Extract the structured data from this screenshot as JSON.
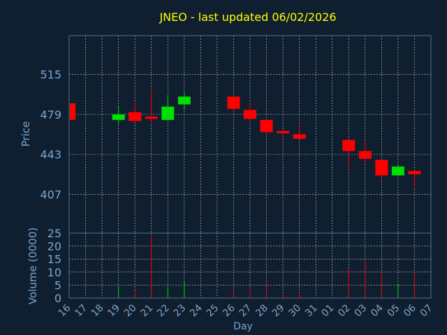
{
  "chart_data": {
    "type": "candlestick",
    "title": "JNEO - last updated 06/02/2026",
    "ylabel": "Price",
    "volume_label": "Volume (0000)",
    "xlabel": "Day",
    "price_ylim": [
      372,
      550
    ],
    "price_ticks": [
      407,
      443,
      479,
      515
    ],
    "volume_ylim": [
      0,
      25
    ],
    "volume_ticks": [
      0,
      5,
      10,
      15,
      20,
      25
    ],
    "x_ticks": [
      "16",
      "17",
      "18",
      "19",
      "20",
      "21",
      "22",
      "23",
      "24",
      "25",
      "26",
      "27",
      "28",
      "29",
      "30",
      "31",
      "01",
      "02",
      "03",
      "04",
      "05",
      "06",
      "07"
    ],
    "grid": true,
    "colors": {
      "background": "#0f1f30",
      "text": "#7ba6cf",
      "title": "#ffff00",
      "axis": "#5a6f86",
      "grid": "#c8d0d8",
      "up": "#00e000",
      "down": "#ff0000"
    },
    "candles": [
      {
        "day": 0,
        "open": 489,
        "high": 489,
        "low": 474,
        "close": 474,
        "volume": 0
      },
      {
        "day": 3,
        "open": 474,
        "high": 486,
        "low": 470,
        "close": 479,
        "volume": 4.5
      },
      {
        "day": 4,
        "open": 481,
        "high": 490,
        "low": 472,
        "close": 473,
        "volume": 3
      },
      {
        "day": 5,
        "open": 477,
        "high": 502,
        "low": 470,
        "close": 475,
        "volume": 24
      },
      {
        "day": 6,
        "open": 474,
        "high": 496,
        "low": 473,
        "close": 486,
        "volume": 4
      },
      {
        "day": 7,
        "open": 488,
        "high": 499,
        "low": 483,
        "close": 495,
        "volume": 6.5
      },
      {
        "day": 10,
        "open": 495,
        "high": 496,
        "low": 481,
        "close": 484,
        "volume": 3
      },
      {
        "day": 11,
        "open": 483,
        "high": 489,
        "low": 474,
        "close": 475,
        "volume": 3.5
      },
      {
        "day": 12,
        "open": 474,
        "high": 475,
        "low": 459,
        "close": 463,
        "volume": 6
      },
      {
        "day": 13,
        "open": 464,
        "high": 465,
        "low": 460,
        "close": 462,
        "volume": 2
      },
      {
        "day": 14,
        "open": 461,
        "high": 470,
        "low": 457,
        "close": 457,
        "volume": 2.5
      },
      {
        "day": 17,
        "open": 456,
        "high": 456,
        "low": 430,
        "close": 446,
        "volume": 11.5
      },
      {
        "day": 18,
        "open": 446,
        "high": 455,
        "low": 434,
        "close": 439,
        "volume": 14.5
      },
      {
        "day": 19,
        "open": 438,
        "high": 439,
        "low": 419,
        "close": 424,
        "volume": 10
      },
      {
        "day": 20,
        "open": 424,
        "high": 433,
        "low": 424,
        "close": 432,
        "volume": 5.5
      },
      {
        "day": 21,
        "open": 428,
        "high": 428,
        "low": 412,
        "close": 425,
        "volume": 10
      }
    ]
  }
}
